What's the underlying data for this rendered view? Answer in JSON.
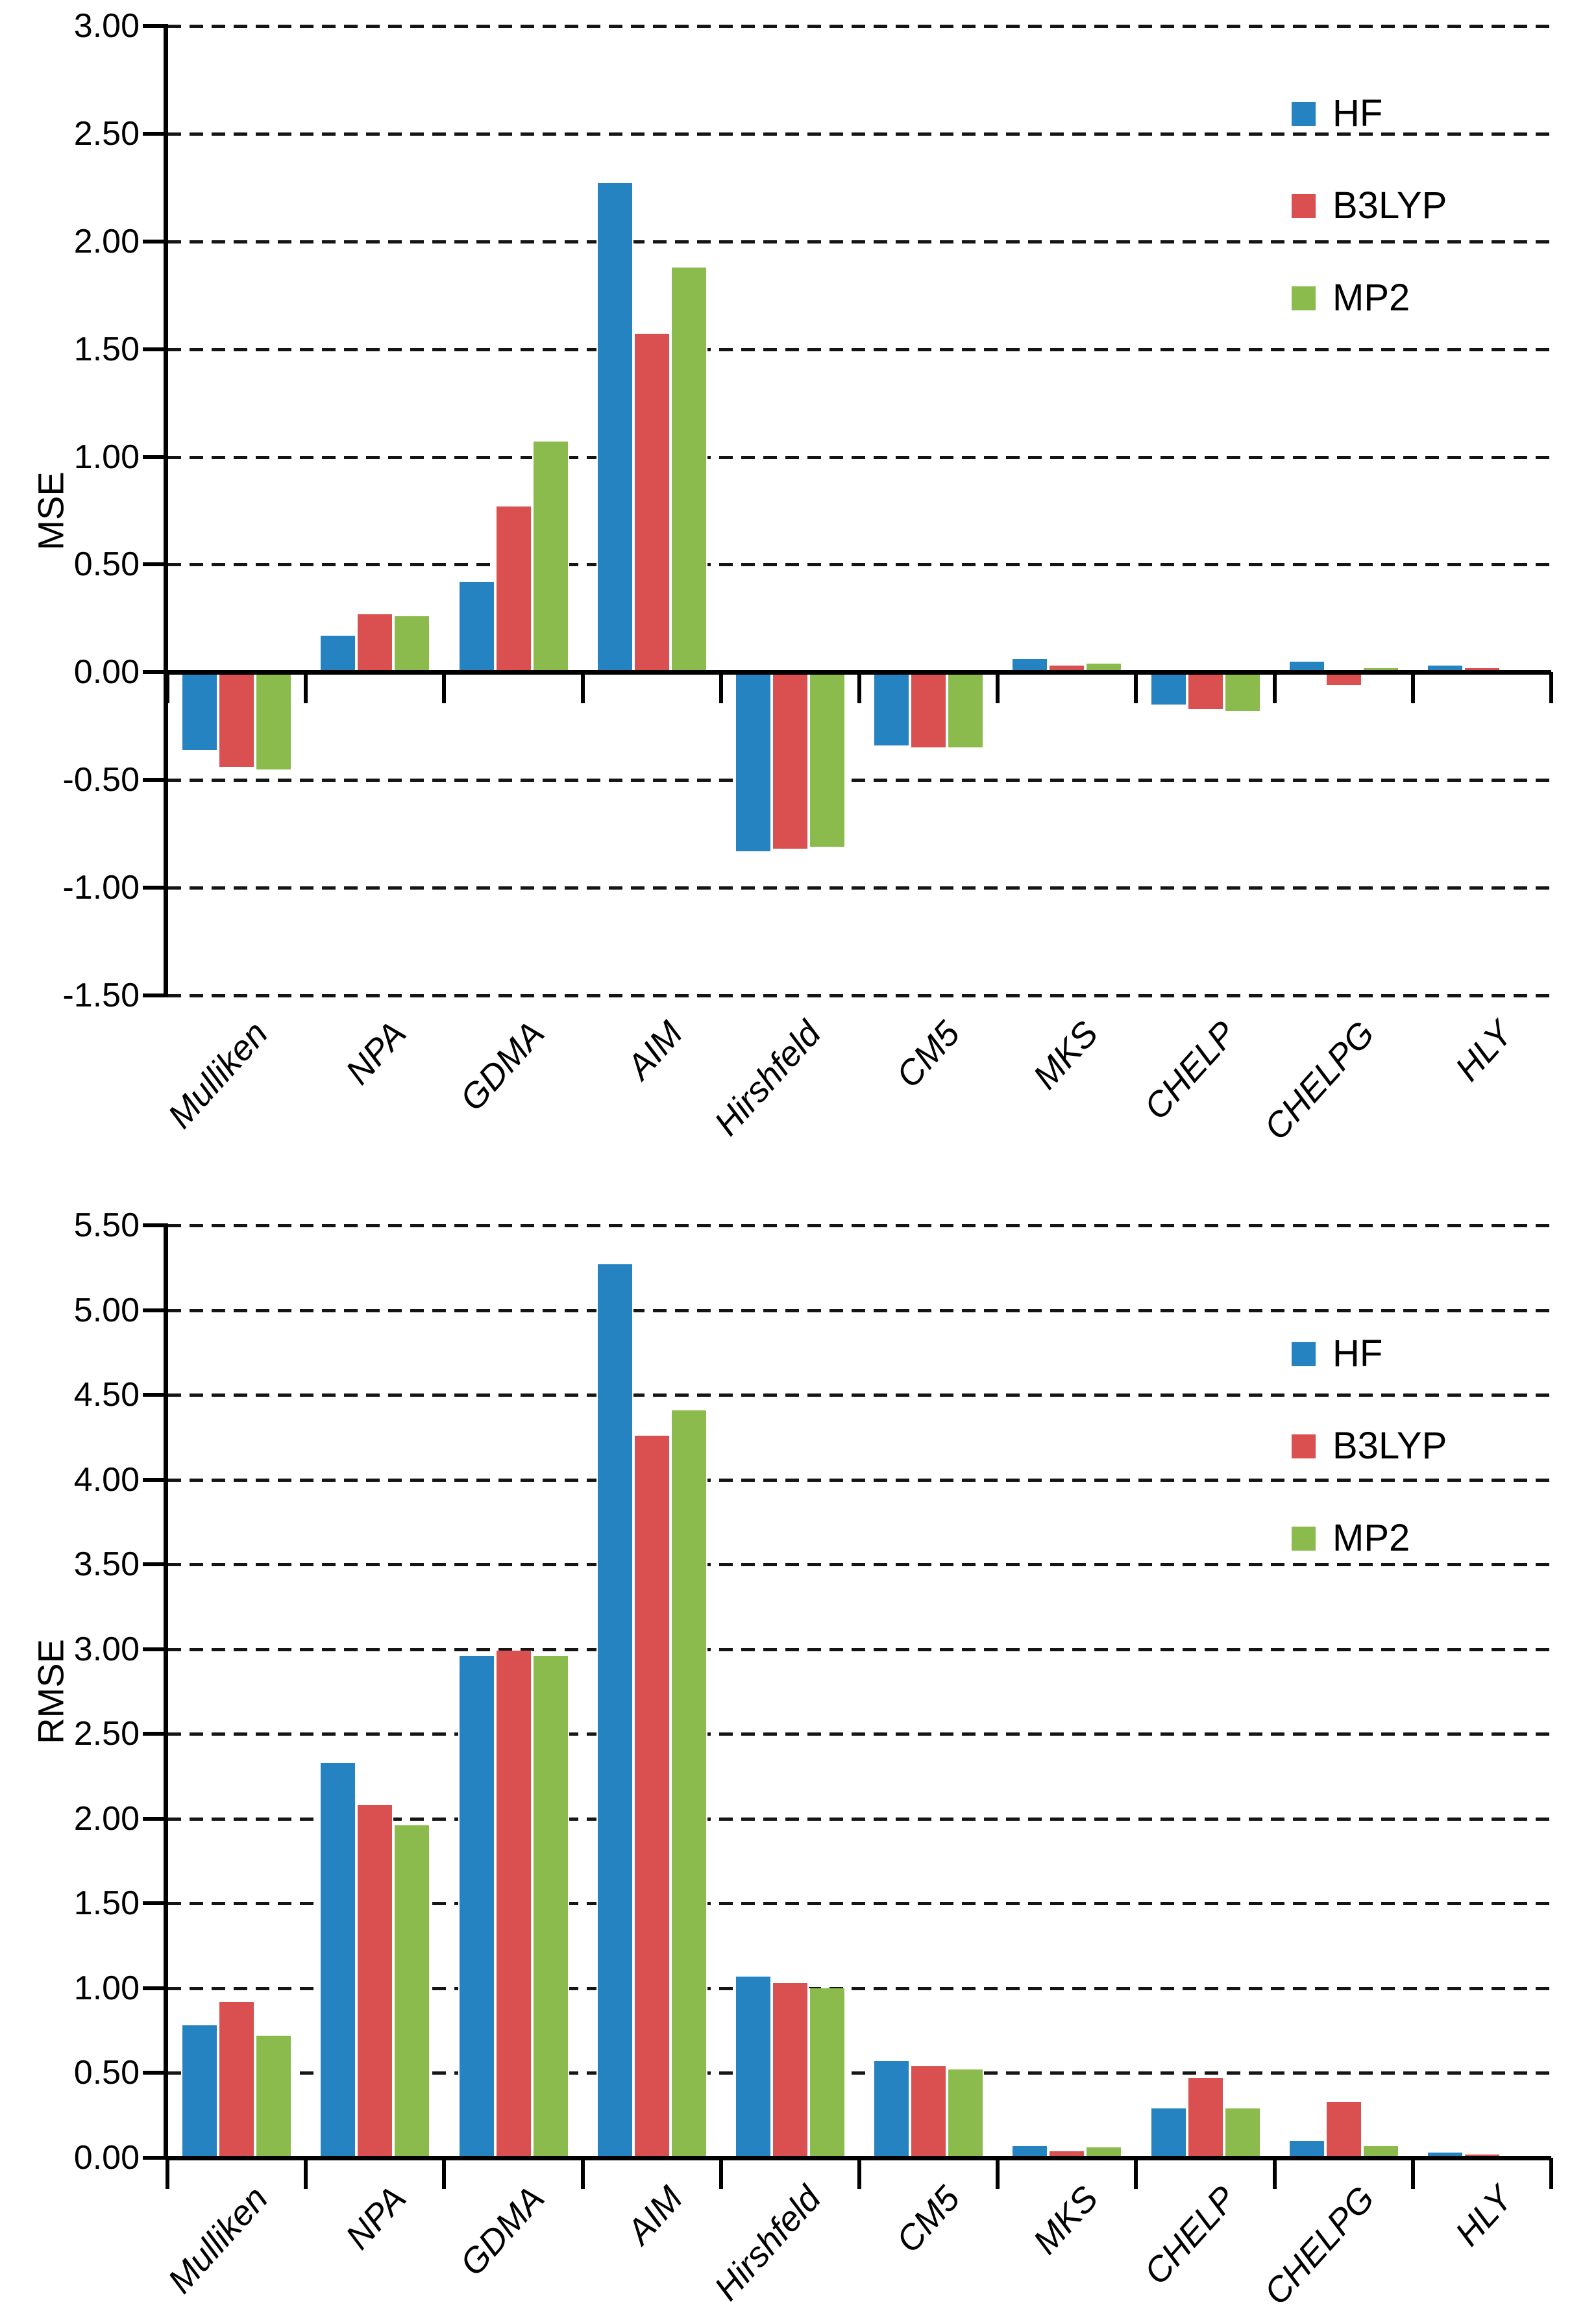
{
  "colors": {
    "hf": "#2583C1",
    "b3lyp": "#DA5050",
    "mp2": "#8CBB4D",
    "axis": "#000000",
    "background": "#FFFFFF"
  },
  "legend": {
    "items": [
      {
        "label": "HF",
        "color_key": "hf"
      },
      {
        "label": "B3LYP",
        "color_key": "b3lyp"
      },
      {
        "label": "MP2",
        "color_key": "mp2"
      }
    ],
    "position": "top-right"
  },
  "chart_data": [
    {
      "type": "bar",
      "title": "",
      "xlabel": "",
      "ylabel": "MSE",
      "categories": [
        "Mulliken",
        "NPA",
        "GDMA",
        "AIM",
        "Hirshfeld",
        "CM5",
        "MKS",
        "CHELP",
        "CHELPG",
        "HLY"
      ],
      "series": [
        {
          "name": "HF",
          "color": "#2583C1",
          "values": [
            -0.36,
            0.17,
            0.42,
            2.27,
            -0.83,
            -0.34,
            0.06,
            -0.15,
            0.05,
            0.03
          ]
        },
        {
          "name": "B3LYP",
          "color": "#DA5050",
          "values": [
            -0.44,
            0.27,
            0.77,
            1.57,
            -0.82,
            -0.35,
            0.03,
            -0.17,
            -0.06,
            0.02
          ]
        },
        {
          "name": "MP2",
          "color": "#8CBB4D",
          "values": [
            -0.45,
            0.26,
            1.07,
            1.88,
            -0.81,
            -0.35,
            0.04,
            -0.18,
            0.02,
            0.01
          ]
        }
      ],
      "ylim": [
        -1.5,
        3.0
      ],
      "ytick_step": 0.5,
      "yticks": [
        "3.00",
        "2.50",
        "2.00",
        "1.50",
        "1.00",
        "0.50",
        "0.00",
        "-0.50",
        "-1.00",
        "-1.50"
      ],
      "grid": "horizontal-dashed",
      "legend_position": "top-right"
    },
    {
      "type": "bar",
      "title": "",
      "xlabel": "",
      "ylabel": "RMSE",
      "categories": [
        "Mulliken",
        "NPA",
        "GDMA",
        "AIM",
        "Hirshfeld",
        "CM5",
        "MKS",
        "CHELP",
        "CHELPG",
        "HLY"
      ],
      "series": [
        {
          "name": "HF",
          "color": "#2583C1",
          "values": [
            0.78,
            2.33,
            2.96,
            5.27,
            1.07,
            0.57,
            0.07,
            0.29,
            0.1,
            0.03
          ]
        },
        {
          "name": "B3LYP",
          "color": "#DA5050",
          "values": [
            0.92,
            2.08,
            2.99,
            4.26,
            1.03,
            0.54,
            0.04,
            0.47,
            0.33,
            0.02
          ]
        },
        {
          "name": "MP2",
          "color": "#8CBB4D",
          "values": [
            0.72,
            1.96,
            2.96,
            4.41,
            1.0,
            0.52,
            0.06,
            0.29,
            0.07,
            0.01
          ]
        }
      ],
      "ylim": [
        0.0,
        5.5
      ],
      "ytick_step": 0.5,
      "yticks": [
        "5.50",
        "5.00",
        "4.50",
        "4.00",
        "3.50",
        "3.00",
        "2.50",
        "2.00",
        "1.50",
        "1.00",
        "0.50",
        "0.00"
      ],
      "grid": "horizontal-dashed",
      "legend_position": "top-right"
    }
  ]
}
